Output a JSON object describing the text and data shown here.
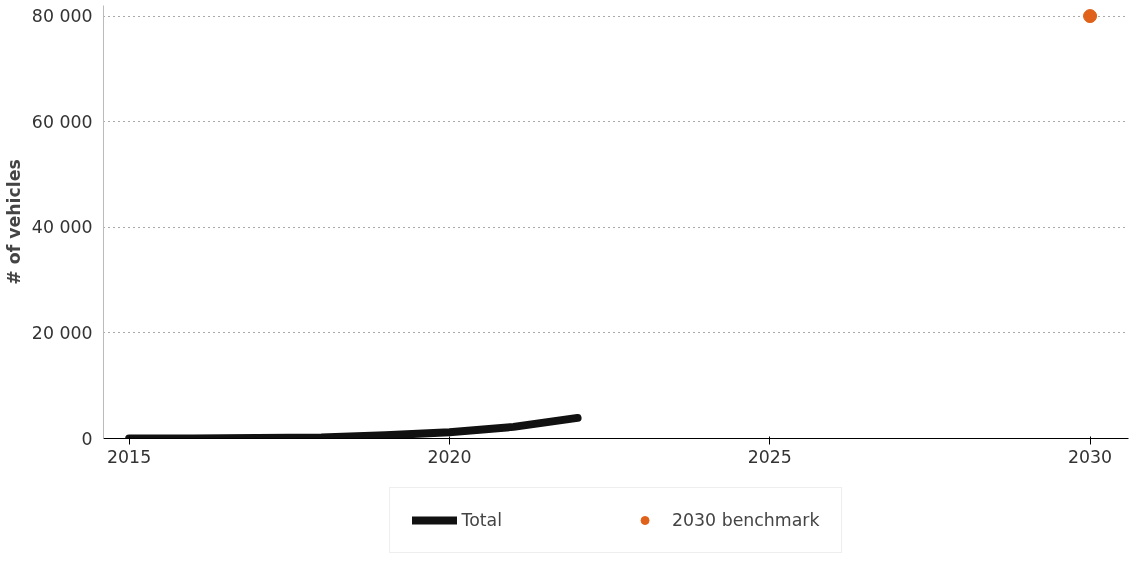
{
  "chart_data": {
    "type": "line",
    "ylabel": "# of vehicles",
    "xlim": [
      2014.6,
      2030.6
    ],
    "xticks": [
      2015,
      2020,
      2025,
      2030
    ],
    "ylim": [
      0,
      82000
    ],
    "yticks": [
      {
        "value": 0,
        "label": "0"
      },
      {
        "value": 20000,
        "label": "20 000"
      },
      {
        "value": 40000,
        "label": "40 000"
      },
      {
        "value": 60000,
        "label": "60 000"
      },
      {
        "value": 80000,
        "label": "80 000"
      }
    ],
    "grid": "y",
    "legend": "bottom",
    "line_style": "solid",
    "series": [
      {
        "name": "Total",
        "color": "#111111",
        "x": [
          2015,
          2016,
          2017,
          2018,
          2019,
          2020,
          2021,
          2022
        ],
        "values": [
          0,
          0,
          100,
          200,
          600,
          1200,
          2200,
          3900
        ]
      },
      {
        "name": "2030 benchmark",
        "type": "scatter",
        "marker": "circle",
        "color": "#e0611a",
        "x": [
          2030
        ],
        "values": [
          80000
        ]
      }
    ]
  }
}
